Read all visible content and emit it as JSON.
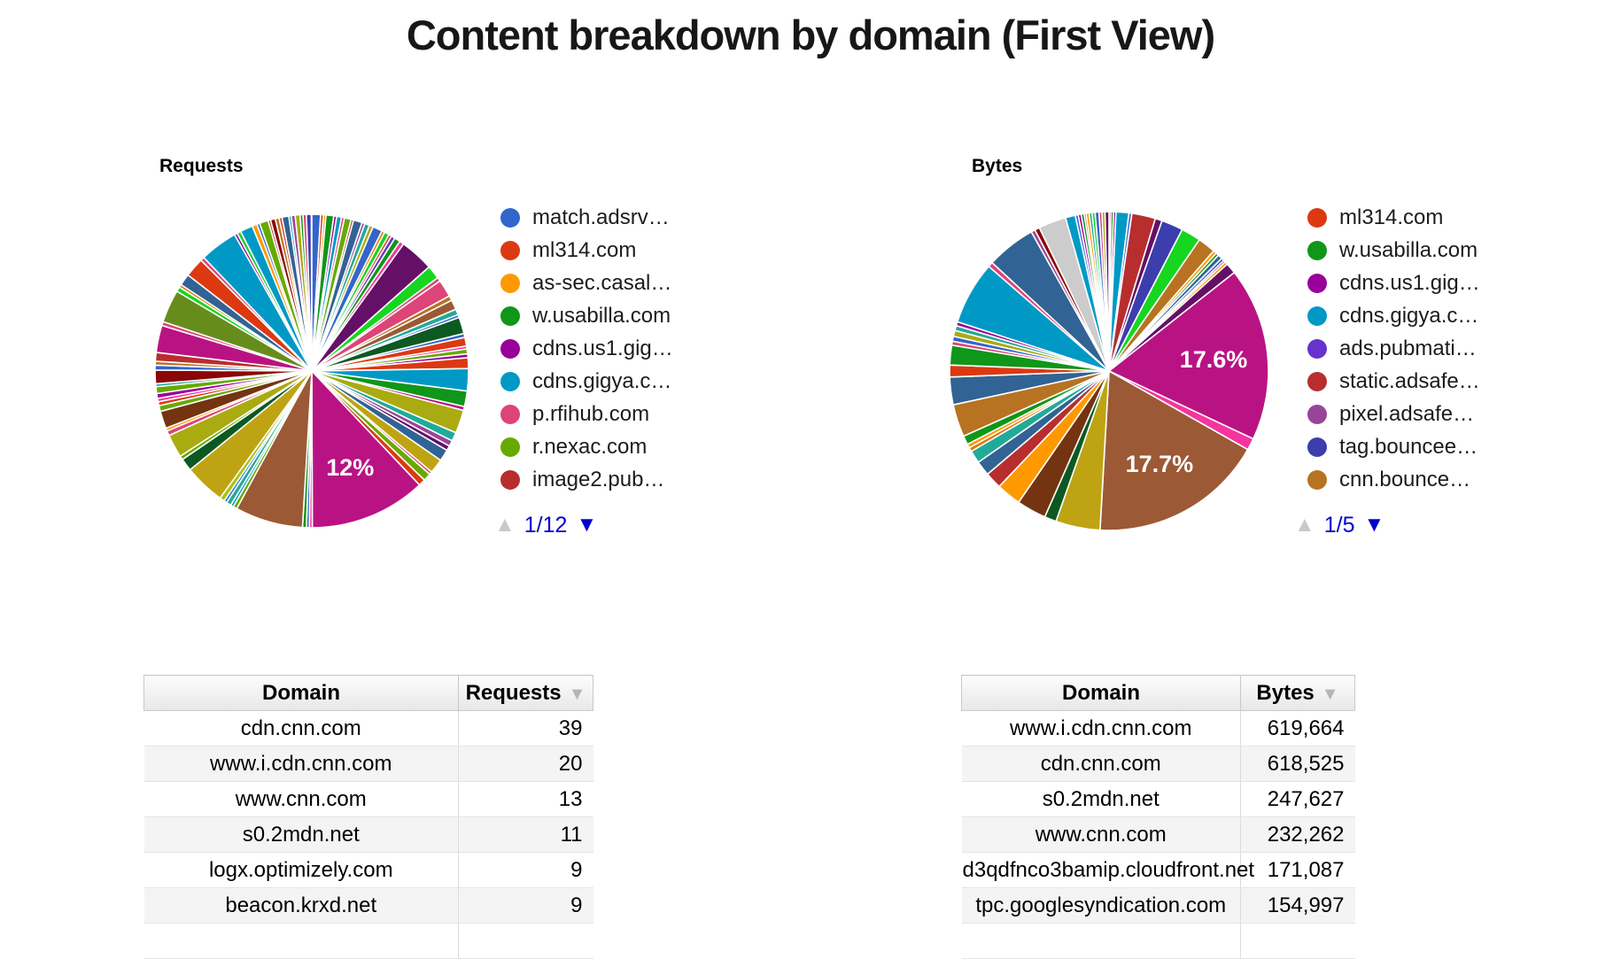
{
  "page": {
    "title": "Content breakdown by domain (First View)"
  },
  "icons": {
    "pager_up": "▲",
    "pager_down": "▼",
    "sort_desc": "▼"
  },
  "colors": {
    "link_blue": "#0000CC",
    "pager_disabled": "#C9C9C9",
    "sort_arrow": "#B5B5B5"
  },
  "charts": {
    "requests": {
      "label": "Requests",
      "pagination": {
        "current": "1/12"
      },
      "legend": [
        {
          "label": "match.adsrv…",
          "color": "#3366CC"
        },
        {
          "label": "ml314.com",
          "color": "#DC3912"
        },
        {
          "label": "as-sec.casal…",
          "color": "#FF9900"
        },
        {
          "label": "w.usabilla.com",
          "color": "#109618"
        },
        {
          "label": "cdns.us1.gig…",
          "color": "#990099"
        },
        {
          "label": "cdns.gigya.c…",
          "color": "#0099C6"
        },
        {
          "label": "p.rfihub.com",
          "color": "#DD4477"
        },
        {
          "label": "r.nexac.com",
          "color": "#66AA00"
        },
        {
          "label": "image2.pub…",
          "color": "#B82E2E"
        }
      ],
      "chart_data": {
        "type": "pie",
        "title": "Requests",
        "legend_position": "right",
        "legend_page": "1/12",
        "labeled_percentages": [
          "12%"
        ],
        "slices": [
          [
            0.9,
            "#3366CC"
          ],
          [
            0.3,
            "#DC3912"
          ],
          [
            0.25,
            "#FF9900"
          ],
          [
            0.8,
            "#109618"
          ],
          [
            0.3,
            "#990099"
          ],
          [
            0.5,
            "#0099C6"
          ],
          [
            0.3,
            "#DD4477"
          ],
          [
            0.7,
            "#66AA00"
          ],
          [
            0.25,
            "#B82E2E"
          ],
          [
            0.9,
            "#316395"
          ],
          [
            0.3,
            "#994499"
          ],
          [
            0.5,
            "#22AA99"
          ],
          [
            0.4,
            "#AAAA11"
          ],
          [
            1.0,
            "#3366CC"
          ],
          [
            0.3,
            "#E67300"
          ],
          [
            0.5,
            "#16D620"
          ],
          [
            0.3,
            "#DC3912"
          ],
          [
            0.4,
            "#6633CC"
          ],
          [
            0.6,
            "#109618"
          ],
          [
            0.45,
            "#F4359E"
          ],
          [
            3.5,
            "#651067"
          ],
          [
            1.4,
            "#16D620"
          ],
          [
            0.4,
            "#DD4477"
          ],
          [
            1.8,
            "#DD4477"
          ],
          [
            0.5,
            "#B77322"
          ],
          [
            1.0,
            "#9C5935"
          ],
          [
            0.6,
            "#22AA99"
          ],
          [
            0.3,
            "#3366CC"
          ],
          [
            1.7,
            "#0C5922"
          ],
          [
            0.4,
            "#3366CC"
          ],
          [
            0.9,
            "#DC3912"
          ],
          [
            0.3,
            "#F4359E"
          ],
          [
            0.5,
            "#66AA00"
          ],
          [
            0.4,
            "#990099"
          ],
          [
            1.1,
            "#DC3912"
          ],
          [
            2.3,
            "#0099C6"
          ],
          [
            1.6,
            "#109618"
          ],
          [
            0.4,
            "#B91383"
          ],
          [
            2.4,
            "#AAAA11"
          ],
          [
            0.9,
            "#22AA99"
          ],
          [
            0.6,
            "#994499"
          ],
          [
            0.5,
            "#651067"
          ],
          [
            1.2,
            "#316395"
          ],
          [
            1.5,
            "#BEA413"
          ],
          [
            0.3,
            "#DD4477"
          ],
          [
            0.8,
            "#66AA00"
          ],
          [
            0.7,
            "#DC3912"
          ],
          [
            12.0,
            "#B91383",
            "12%"
          ],
          [
            0.3,
            "#F4359E"
          ],
          [
            0.3,
            "#3366CC"
          ],
          [
            0.4,
            "#109618"
          ],
          [
            7.0,
            "#9C5935"
          ],
          [
            0.4,
            "#66AA00"
          ],
          [
            0.3,
            "#0099C6"
          ],
          [
            0.5,
            "#22AA99"
          ],
          [
            0.3,
            "#3366CC"
          ],
          [
            0.5,
            "#A9C413"
          ],
          [
            4.2,
            "#BEA413"
          ],
          [
            1.3,
            "#0C5922"
          ],
          [
            0.4,
            "#66AA00"
          ],
          [
            2.4,
            "#AAAA11"
          ],
          [
            0.5,
            "#DD4477"
          ],
          [
            0.3,
            "#FF9900"
          ],
          [
            1.8,
            "#743411"
          ],
          [
            0.6,
            "#66AA00"
          ],
          [
            0.4,
            "#DC3912"
          ],
          [
            0.35,
            "#F4359E"
          ],
          [
            0.5,
            "#990099"
          ],
          [
            0.7,
            "#66AA00"
          ],
          [
            0.3,
            "#22AA99"
          ],
          [
            1.4,
            "#8B0707"
          ],
          [
            0.5,
            "#3366CC"
          ],
          [
            0.4,
            "#B77322"
          ],
          [
            0.9,
            "#B82E2E"
          ],
          [
            2.8,
            "#B91383"
          ],
          [
            0.4,
            "#DD4477"
          ],
          [
            3.4,
            "#668D1C"
          ],
          [
            0.5,
            "#16D620"
          ],
          [
            0.3,
            "#E67300"
          ],
          [
            1.2,
            "#316395"
          ],
          [
            2.0,
            "#DC3912"
          ],
          [
            0.4,
            "#DD4477"
          ],
          [
            3.9,
            "#0099C6"
          ],
          [
            0.3,
            "#990099"
          ],
          [
            0.4,
            "#16D620"
          ],
          [
            1.3,
            "#0099C6"
          ],
          [
            0.5,
            "#FF9900"
          ],
          [
            0.3,
            "#3366CC"
          ],
          [
            0.9,
            "#66AA00"
          ],
          [
            0.25,
            "#B82E2E"
          ],
          [
            0.5,
            "#8B0707"
          ],
          [
            0.4,
            "#B77322"
          ],
          [
            0.3,
            "#DC3912"
          ],
          [
            0.7,
            "#316395"
          ],
          [
            0.25,
            "#0099C6"
          ],
          [
            0.4,
            "#994499"
          ],
          [
            0.5,
            "#AAAA11"
          ],
          [
            0.3,
            "#109618"
          ],
          [
            0.35,
            "#DD4477"
          ],
          [
            0.5,
            "#3B3EAC"
          ]
        ]
      }
    },
    "bytes": {
      "label": "Bytes",
      "pagination": {
        "current": "1/5"
      },
      "legend": [
        {
          "label": "ml314.com",
          "color": "#DC3912"
        },
        {
          "label": "w.usabilla.com",
          "color": "#109618"
        },
        {
          "label": "cdns.us1.gig…",
          "color": "#990099"
        },
        {
          "label": "cdns.gigya.c…",
          "color": "#0099C6"
        },
        {
          "label": "ads.pubmati…",
          "color": "#6633CC"
        },
        {
          "label": "static.adsafe…",
          "color": "#B82E2E"
        },
        {
          "label": "pixel.adsafe…",
          "color": "#994499"
        },
        {
          "label": "tag.bouncee…",
          "color": "#3B3EAC"
        },
        {
          "label": "cnn.bounce…",
          "color": "#B77322"
        }
      ],
      "chart_data": {
        "type": "pie",
        "title": "Bytes",
        "legend_position": "right",
        "legend_page": "1/5",
        "labeled_percentages": [
          "17.6%",
          "17.7%"
        ],
        "slices": [
          [
            0.2,
            "#DC3912"
          ],
          [
            0.25,
            "#109618"
          ],
          [
            0.25,
            "#990099"
          ],
          [
            1.3,
            "#0099C6"
          ],
          [
            0.3,
            "#3366CC"
          ],
          [
            2.4,
            "#B82E2E"
          ],
          [
            0.7,
            "#651067"
          ],
          [
            2.2,
            "#3B3EAC"
          ],
          [
            2.0,
            "#16D620"
          ],
          [
            1.8,
            "#B77322"
          ],
          [
            0.35,
            "#FF9900"
          ],
          [
            0.3,
            "#109618"
          ],
          [
            0.45,
            "#316395"
          ],
          [
            0.3,
            "#3366CC"
          ],
          [
            0.2,
            "#990099"
          ],
          [
            0.3,
            "#FF9900"
          ],
          [
            1.1,
            "#651067"
          ],
          [
            17.6,
            "#B91383",
            "17.6%"
          ],
          [
            1.2,
            "#F4359E"
          ],
          [
            17.7,
            "#9C5935",
            "17.7%"
          ],
          [
            4.5,
            "#BEA413"
          ],
          [
            1.2,
            "#0C5922"
          ],
          [
            3.0,
            "#743411"
          ],
          [
            2.5,
            "#FF9900"
          ],
          [
            1.7,
            "#B82E2E"
          ],
          [
            1.5,
            "#316395"
          ],
          [
            1.3,
            "#22AA99"
          ],
          [
            0.4,
            "#E67300"
          ],
          [
            0.4,
            "#FF9900"
          ],
          [
            0.9,
            "#109618"
          ],
          [
            3.3,
            "#B77322"
          ],
          [
            2.8,
            "#316395"
          ],
          [
            1.2,
            "#DC3912"
          ],
          [
            2.0,
            "#109618"
          ],
          [
            0.4,
            "#DD4477"
          ],
          [
            0.5,
            "#3366CC"
          ],
          [
            0.6,
            "#AAAA11"
          ],
          [
            0.5,
            "#22AA99"
          ],
          [
            0.4,
            "#990099"
          ],
          [
            6.4,
            "#0099C6"
          ],
          [
            0.5,
            "#DD4477"
          ],
          [
            5.0,
            "#316395"
          ],
          [
            0.4,
            "#994499"
          ],
          [
            0.5,
            "#8B0707"
          ],
          [
            2.8,
            "#CCCCCC"
          ],
          [
            1.0,
            "#0099C6"
          ],
          [
            0.3,
            "#3366CC"
          ],
          [
            0.3,
            "#990099"
          ],
          [
            0.3,
            "#109618"
          ],
          [
            0.2,
            "#DC3912"
          ],
          [
            0.3,
            "#FF9900"
          ],
          [
            0.3,
            "#22AA99"
          ],
          [
            0.3,
            "#16D620"
          ],
          [
            0.4,
            "#3366CC"
          ],
          [
            0.3,
            "#DD4477"
          ],
          [
            0.3,
            "#AAAA11"
          ],
          [
            0.4,
            "#651067"
          ]
        ]
      }
    }
  },
  "tables": {
    "requests": {
      "headers": [
        "Domain",
        "Requests"
      ],
      "rows": [
        [
          "cdn.cnn.com",
          "39"
        ],
        [
          "www.i.cdn.cnn.com",
          "20"
        ],
        [
          "www.cnn.com",
          "13"
        ],
        [
          "s0.2mdn.net",
          "11"
        ],
        [
          "logx.optimizely.com",
          "9"
        ],
        [
          "beacon.krxd.net",
          "9"
        ]
      ]
    },
    "bytes": {
      "headers": [
        "Domain",
        "Bytes"
      ],
      "rows": [
        [
          "www.i.cdn.cnn.com",
          "619,664"
        ],
        [
          "cdn.cnn.com",
          "618,525"
        ],
        [
          "s0.2mdn.net",
          "247,627"
        ],
        [
          "www.cnn.com",
          "232,262"
        ],
        [
          "d3qdfnco3bamip.cloudfront.net",
          "171,087"
        ],
        [
          "tpc.googlesyndication.com",
          "154,997"
        ]
      ]
    }
  }
}
